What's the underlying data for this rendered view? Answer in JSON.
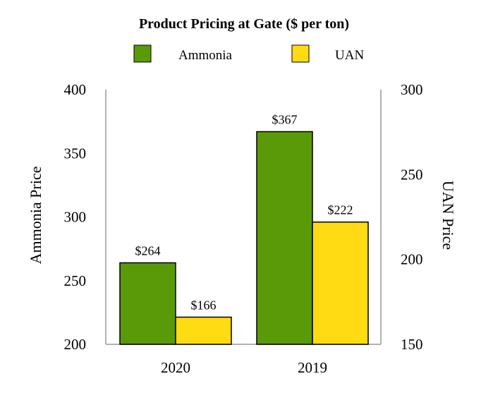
{
  "chart_data": {
    "type": "bar",
    "title": "Product Pricing at Gate ($ per ton)",
    "categories": [
      "2020",
      "2019"
    ],
    "series": [
      {
        "name": "Ammonia",
        "axis": "left",
        "color": "#5a9a08",
        "values": [
          264,
          367
        ],
        "labels": [
          "$264",
          "$367"
        ]
      },
      {
        "name": "UAN",
        "axis": "right",
        "color": "#ffdb14",
        "values": [
          166,
          222
        ],
        "labels": [
          "$166",
          "$222"
        ]
      }
    ],
    "left_axis": {
      "label": "Ammonia Price",
      "ylim": [
        200,
        400
      ],
      "ticks": [
        "200",
        "250",
        "300",
        "350",
        "400"
      ]
    },
    "right_axis": {
      "label": "UAN Price",
      "ylim": [
        150,
        300
      ],
      "ticks": [
        "150",
        "200",
        "250",
        "300"
      ]
    },
    "legend_position": "top-center",
    "grid": false
  }
}
